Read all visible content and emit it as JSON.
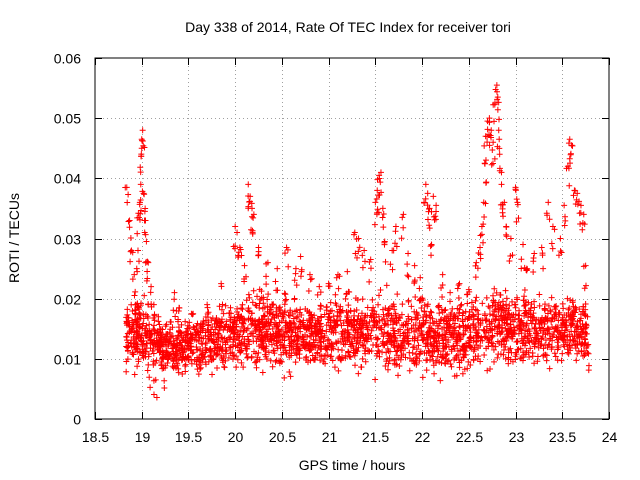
{
  "chart_data": {
    "type": "scatter",
    "title": "Day 338 of 2014, Rate Of TEC Index for receiver tori",
    "xlabel": "GPS time / hours",
    "ylabel": "ROTI / TECUs",
    "xlim": [
      18.5,
      24
    ],
    "ylim": [
      0,
      0.06
    ],
    "xticks": [
      18.5,
      19,
      19.5,
      20,
      20.5,
      21,
      21.5,
      22,
      22.5,
      23,
      23.5,
      24
    ],
    "xtick_labels": [
      "18.5",
      "19",
      "19.5",
      "20",
      "20.5",
      "21",
      "21.5",
      "22",
      "22.5",
      "23",
      "23.5",
      "24"
    ],
    "yticks": [
      0,
      0.01,
      0.02,
      0.03,
      0.04,
      0.05,
      0.06
    ],
    "ytick_labels": [
      "0",
      "0.01",
      "0.02",
      "0.03",
      "0.04",
      "0.05",
      "0.06"
    ],
    "grid": true,
    "marker": "+",
    "color": "#ff0000",
    "x_range_of_data": [
      18.83,
      23.77
    ],
    "series": [
      {
        "name": "ROTI",
        "points": [
          [
            18.84,
            0.0385
          ],
          [
            18.87,
            0.033
          ],
          [
            18.89,
            0.028
          ],
          [
            18.92,
            0.024
          ],
          [
            18.94,
            0.019
          ],
          [
            18.96,
            0.028
          ],
          [
            18.97,
            0.0335
          ],
          [
            18.98,
            0.036
          ],
          [
            18.99,
            0.039
          ],
          [
            19.0,
            0.045
          ],
          [
            19.0,
            0.0465
          ],
          [
            19.01,
            0.048
          ],
          [
            19.02,
            0.0375
          ],
          [
            19.03,
            0.033
          ],
          [
            19.05,
            0.0295
          ],
          [
            19.07,
            0.026
          ],
          [
            19.1,
            0.022
          ],
          [
            19.13,
            0.019
          ],
          [
            19.07,
            0.009
          ],
          [
            19.15,
            0.0065
          ],
          [
            19.25,
            0.0085
          ],
          [
            19.35,
            0.021
          ],
          [
            19.4,
            0.0185
          ],
          [
            19.55,
            0.0175
          ],
          [
            19.7,
            0.019
          ],
          [
            19.85,
            0.0225
          ],
          [
            19.95,
            0.0185
          ],
          [
            20.0,
            0.032
          ],
          [
            20.02,
            0.031
          ],
          [
            20.05,
            0.0285
          ],
          [
            20.1,
            0.0255
          ],
          [
            20.14,
            0.039
          ],
          [
            20.16,
            0.037
          ],
          [
            20.18,
            0.035
          ],
          [
            20.2,
            0.034
          ],
          [
            20.25,
            0.0285
          ],
          [
            20.35,
            0.026
          ],
          [
            20.45,
            0.025
          ],
          [
            20.55,
            0.0285
          ],
          [
            20.65,
            0.025
          ],
          [
            20.7,
            0.027
          ],
          [
            20.8,
            0.024
          ],
          [
            20.9,
            0.022
          ],
          [
            21.0,
            0.0225
          ],
          [
            21.1,
            0.024
          ],
          [
            21.2,
            0.0245
          ],
          [
            21.28,
            0.031
          ],
          [
            21.32,
            0.03
          ],
          [
            21.38,
            0.028
          ],
          [
            21.45,
            0.0265
          ],
          [
            21.5,
            0.036
          ],
          [
            21.52,
            0.038
          ],
          [
            21.54,
            0.0405
          ],
          [
            21.56,
            0.041
          ],
          [
            21.58,
            0.035
          ],
          [
            21.6,
            0.0295
          ],
          [
            21.68,
            0.028
          ],
          [
            21.72,
            0.032
          ],
          [
            21.8,
            0.034
          ],
          [
            21.85,
            0.0275
          ],
          [
            21.92,
            0.0255
          ],
          [
            21.98,
            0.0235
          ],
          [
            22.04,
            0.039
          ],
          [
            22.06,
            0.0375
          ],
          [
            22.08,
            0.035
          ],
          [
            22.12,
            0.037
          ],
          [
            22.15,
            0.0355
          ],
          [
            22.1,
            0.029
          ],
          [
            22.22,
            0.024
          ],
          [
            22.3,
            0.021
          ],
          [
            22.4,
            0.0225
          ],
          [
            22.5,
            0.0215
          ],
          [
            22.58,
            0.026
          ],
          [
            22.62,
            0.0285
          ],
          [
            22.64,
            0.032
          ],
          [
            22.66,
            0.036
          ],
          [
            22.67,
            0.0425
          ],
          [
            22.68,
            0.047
          ],
          [
            22.7,
            0.0495
          ],
          [
            22.72,
            0.05
          ],
          [
            22.74,
            0.048
          ],
          [
            22.76,
            0.046
          ],
          [
            22.78,
            0.0525
          ],
          [
            22.8,
            0.0555
          ],
          [
            22.81,
            0.0535
          ],
          [
            22.82,
            0.048
          ],
          [
            22.83,
            0.044
          ],
          [
            22.85,
            0.039
          ],
          [
            22.88,
            0.036
          ],
          [
            22.9,
            0.032
          ],
          [
            22.95,
            0.03
          ],
          [
            23.0,
            0.0385
          ],
          [
            23.02,
            0.036
          ],
          [
            23.08,
            0.029
          ],
          [
            23.12,
            0.025
          ],
          [
            23.2,
            0.0275
          ],
          [
            23.28,
            0.0285
          ],
          [
            23.35,
            0.036
          ],
          [
            23.4,
            0.032
          ],
          [
            23.48,
            0.03
          ],
          [
            23.52,
            0.0355
          ],
          [
            23.56,
            0.042
          ],
          [
            23.58,
            0.0465
          ],
          [
            23.6,
            0.0455
          ],
          [
            23.63,
            0.038
          ],
          [
            23.66,
            0.0375
          ],
          [
            23.7,
            0.0355
          ],
          [
            23.73,
            0.034
          ],
          [
            23.75,
            0.0255
          ],
          [
            23.76,
            0.0155
          ],
          [
            23.77,
            0.011
          ]
        ]
      }
    ],
    "dense_band": {
      "x_range": [
        18.83,
        23.77
      ],
      "lower_profile": [
        [
          18.85,
          0.007
        ],
        [
          19.0,
          0.006
        ],
        [
          19.3,
          0.0055
        ],
        [
          19.6,
          0.006
        ],
        [
          20.0,
          0.0065
        ],
        [
          20.4,
          0.006
        ],
        [
          20.8,
          0.007
        ],
        [
          21.2,
          0.007
        ],
        [
          21.6,
          0.006
        ],
        [
          22.0,
          0.0055
        ],
        [
          22.4,
          0.006
        ],
        [
          22.8,
          0.0065
        ],
        [
          23.2,
          0.007
        ],
        [
          23.6,
          0.0075
        ],
        [
          23.75,
          0.009
        ]
      ],
      "upper_profile": [
        [
          18.85,
          0.02
        ],
        [
          19.0,
          0.022
        ],
        [
          19.3,
          0.018
        ],
        [
          19.6,
          0.019
        ],
        [
          20.0,
          0.022
        ],
        [
          20.4,
          0.024
        ],
        [
          20.8,
          0.021
        ],
        [
          21.2,
          0.022
        ],
        [
          21.6,
          0.023
        ],
        [
          22.0,
          0.022
        ],
        [
          22.4,
          0.021
        ],
        [
          22.8,
          0.024
        ],
        [
          23.2,
          0.023
        ],
        [
          23.6,
          0.022
        ],
        [
          23.75,
          0.02
        ]
      ],
      "median": 0.0135
    }
  }
}
